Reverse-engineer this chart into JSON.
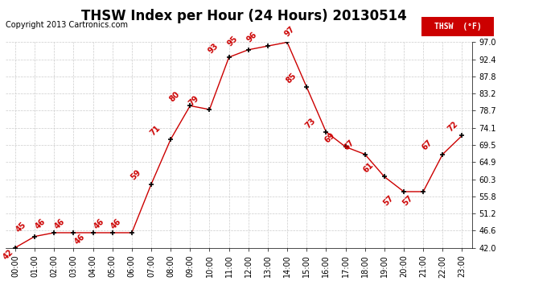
{
  "title": "THSW Index per Hour (24 Hours) 20130514",
  "copyright": "Copyright 2013 Cartronics.com",
  "legend_label": "THSW  (°F)",
  "hours": [
    0,
    1,
    2,
    3,
    4,
    5,
    6,
    7,
    8,
    9,
    10,
    11,
    12,
    13,
    14,
    15,
    16,
    17,
    18,
    19,
    20,
    21,
    22,
    23
  ],
  "values": [
    42,
    45,
    46,
    46,
    46,
    46,
    46,
    59,
    71,
    80,
    79,
    93,
    95,
    96,
    97,
    85,
    73,
    69,
    67,
    61,
    57,
    57,
    67,
    72
  ],
  "xlabels": [
    "00:00",
    "01:00",
    "02:00",
    "03:00",
    "04:00",
    "05:00",
    "06:00",
    "07:00",
    "08:00",
    "09:00",
    "10:00",
    "11:00",
    "12:00",
    "13:00",
    "14:00",
    "15:00",
    "16:00",
    "17:00",
    "18:00",
    "19:00",
    "20:00",
    "21:00",
    "22:00",
    "23:00"
  ],
  "ylim": [
    42.0,
    97.0
  ],
  "yticks": [
    42.0,
    46.6,
    51.2,
    55.8,
    60.3,
    64.9,
    69.5,
    74.1,
    78.7,
    83.2,
    87.8,
    92.4,
    97.0
  ],
  "line_color": "#cc0000",
  "label_color": "#cc0000",
  "marker_color": "#000000",
  "marker": "+",
  "marker_size": 5,
  "grid_color": "#cccccc",
  "bg_color": "#ffffff",
  "legend_bg": "#cc0000",
  "legend_text_color": "#ffffff",
  "title_fontsize": 12,
  "tick_fontsize": 7,
  "label_fontsize": 7,
  "copyright_fontsize": 7
}
